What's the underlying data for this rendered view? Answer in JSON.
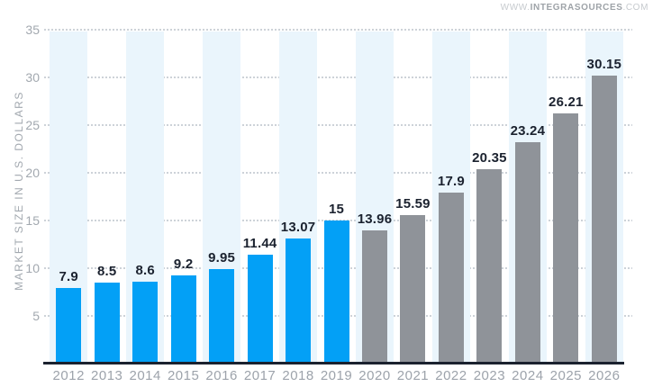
{
  "watermark": {
    "prefix": "WWW.",
    "brand": "INTEGRASOURCES",
    "suffix": ".COM"
  },
  "chart_data": {
    "type": "bar",
    "ylabel": "MARKET SIZE IN U.S. DOLLARS",
    "categories": [
      "2012",
      "2013",
      "2014",
      "2015",
      "2016",
      "2017",
      "2018",
      "2019",
      "2020",
      "2021",
      "2022",
      "2023",
      "2024",
      "2025",
      "2026"
    ],
    "values": [
      7.9,
      8.5,
      8.6,
      9.2,
      9.95,
      11.44,
      13.07,
      15,
      13.96,
      15.59,
      17.9,
      20.35,
      23.24,
      26.21,
      30.15
    ],
    "value_labels": [
      "7.9",
      "8.5",
      "8.6",
      "9.2",
      "9.95",
      "11.44",
      "13.07",
      "15",
      "13.96",
      "15.59",
      "17.9",
      "20.35",
      "23.24",
      "26.21",
      "30.15"
    ],
    "bar_types": [
      "actual",
      "actual",
      "actual",
      "actual",
      "actual",
      "actual",
      "actual",
      "actual",
      "forecast",
      "forecast",
      "forecast",
      "forecast",
      "forecast",
      "forecast",
      "forecast"
    ],
    "colors": {
      "actual": "#03A0F6",
      "forecast": "#8F9399",
      "stripe": "#EAF5FC",
      "value_label": "#1B222F",
      "axis_text": "#9DA3AB",
      "grid_dot": "#C9CFD5",
      "baseline": "#1B222F"
    },
    "ylim": [
      0,
      35
    ],
    "yticks": [
      35,
      30,
      25,
      20,
      15,
      10,
      5
    ],
    "grid": "horizontal dotted lines",
    "background_stripes": "alternate year columns starting at 2012",
    "legend_position": "none"
  }
}
